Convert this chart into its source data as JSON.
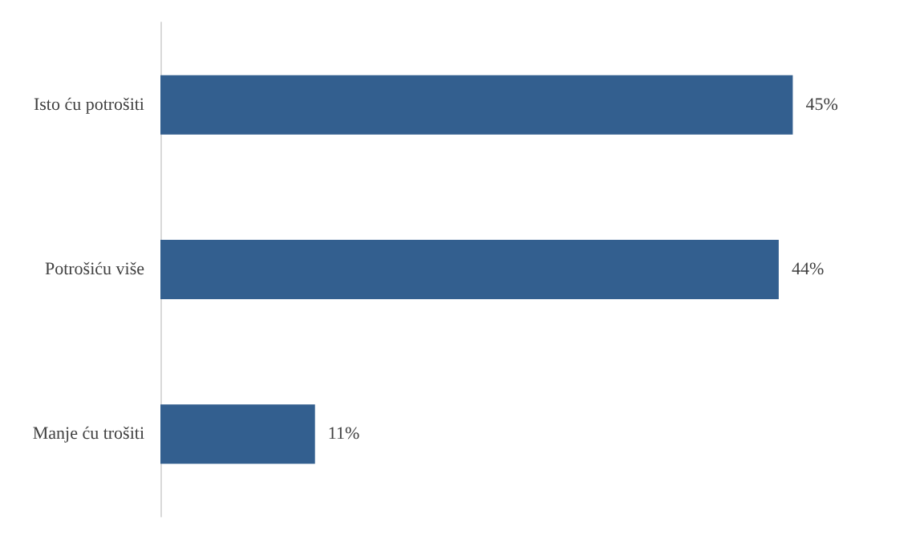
{
  "chart_data": {
    "type": "bar",
    "orientation": "horizontal",
    "categories": [
      "Isto ću potrošiti",
      "Potrošiću više",
      "Manje ću trošiti"
    ],
    "values": [
      45,
      44,
      11
    ],
    "color": "#335f8f",
    "value_labels": [
      "45%",
      "44%",
      "11%"
    ]
  }
}
